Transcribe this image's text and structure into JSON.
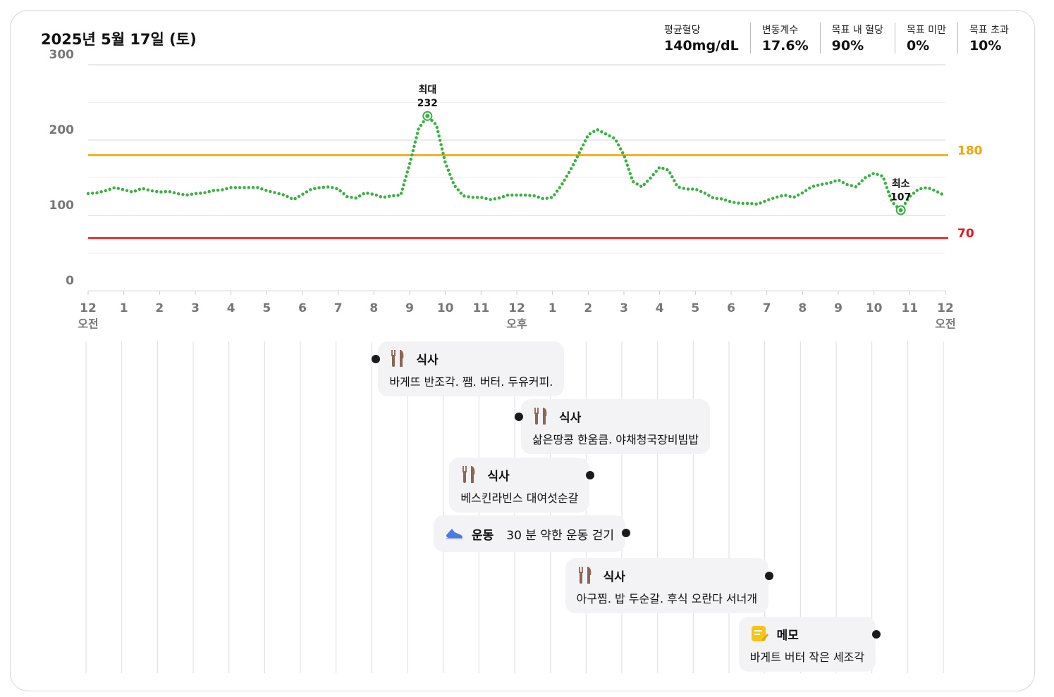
{
  "chart_data": {
    "type": "line",
    "title": "2025년 5월 17일 (토)",
    "stats": [
      {
        "label": "평균혈당",
        "value": "140mg/dL"
      },
      {
        "label": "변동계수",
        "value": "17.6%"
      },
      {
        "label": "목표 내 혈당",
        "value": "90%"
      },
      {
        "label": "목표 미만",
        "value": "0%"
      },
      {
        "label": "목표 초과",
        "value": "10%"
      }
    ],
    "xlim": [
      0,
      24
    ],
    "xticks": [
      {
        "value": 0,
        "label": "12",
        "sublabel": "오전"
      },
      {
        "value": 1,
        "label": "1"
      },
      {
        "value": 2,
        "label": "2"
      },
      {
        "value": 3,
        "label": "3"
      },
      {
        "value": 4,
        "label": "4"
      },
      {
        "value": 5,
        "label": "5"
      },
      {
        "value": 6,
        "label": "6"
      },
      {
        "value": 7,
        "label": "7"
      },
      {
        "value": 8,
        "label": "8"
      },
      {
        "value": 9,
        "label": "9"
      },
      {
        "value": 10,
        "label": "10"
      },
      {
        "value": 11,
        "label": "11"
      },
      {
        "value": 12,
        "label": "12",
        "sublabel": "오후"
      },
      {
        "value": 13,
        "label": "1"
      },
      {
        "value": 14,
        "label": "2"
      },
      {
        "value": 15,
        "label": "3"
      },
      {
        "value": 16,
        "label": "4"
      },
      {
        "value": 17,
        "label": "5"
      },
      {
        "value": 18,
        "label": "6"
      },
      {
        "value": 19,
        "label": "7"
      },
      {
        "value": 20,
        "label": "8"
      },
      {
        "value": 21,
        "label": "9"
      },
      {
        "value": 22,
        "label": "10"
      },
      {
        "value": 23,
        "label": "11"
      },
      {
        "value": 24,
        "label": "12",
        "sublabel": "오전"
      }
    ],
    "ylim": [
      0,
      300
    ],
    "yticks": [
      0,
      100,
      200,
      300
    ],
    "minor_yticks": [
      50,
      150,
      250
    ],
    "grid": true,
    "thresholds": [
      {
        "value": 180,
        "color": "#f0a500"
      },
      {
        "value": 70,
        "color": "#e8141a"
      }
    ],
    "series": [
      {
        "color": "#3bb143",
        "x": [
          0,
          0.25,
          0.5,
          0.75,
          1,
          1.25,
          1.5,
          1.75,
          2,
          2.25,
          2.5,
          2.75,
          3,
          3.25,
          3.5,
          3.75,
          4,
          4.25,
          4.5,
          4.75,
          5,
          5.25,
          5.5,
          5.75,
          6,
          6.25,
          6.5,
          6.75,
          7,
          7.25,
          7.5,
          7.75,
          8,
          8.25,
          8.5,
          8.75,
          9,
          9.25,
          9.5,
          9.75,
          10,
          10.25,
          10.5,
          10.75,
          11,
          11.25,
          11.5,
          11.75,
          12,
          12.25,
          12.5,
          12.75,
          13,
          13.25,
          13.5,
          13.75,
          14,
          14.25,
          14.5,
          14.75,
          15,
          15.25,
          15.5,
          15.75,
          16,
          16.25,
          16.5,
          16.75,
          17,
          17.25,
          17.5,
          17.75,
          18,
          18.25,
          18.5,
          18.75,
          19,
          19.25,
          19.5,
          19.75,
          20,
          20.25,
          20.5,
          20.75,
          21,
          21.25,
          21.5,
          21.75,
          22,
          22.25,
          22.5,
          22.75,
          23,
          23.25,
          23.5,
          23.75,
          24
        ],
        "values": [
          129,
          130,
          133,
          137,
          134,
          131,
          136,
          133,
          131,
          132,
          129,
          127,
          129,
          130,
          133,
          134,
          137,
          137,
          137,
          137,
          133,
          130,
          127,
          121,
          128,
          135,
          137,
          138,
          135,
          125,
          123,
          130,
          128,
          124,
          126,
          127,
          168,
          215,
          232,
          220,
          170,
          140,
          126,
          124,
          124,
          121,
          123,
          127,
          127,
          127,
          126,
          122,
          124,
          140,
          160,
          183,
          207,
          214,
          208,
          202,
          180,
          145,
          138,
          150,
          164,
          160,
          138,
          135,
          135,
          130,
          123,
          122,
          118,
          116,
          116,
          115,
          120,
          124,
          127,
          124,
          130,
          138,
          141,
          143,
          147,
          141,
          138,
          150,
          156,
          152,
          118,
          107,
          125,
          135,
          137,
          132,
          126
        ]
      }
    ],
    "annotations": [
      {
        "label": "최대",
        "x": 9.5,
        "value": 232
      },
      {
        "label": "최소",
        "x": 22.75,
        "value": 107
      }
    ],
    "events": [
      {
        "kind": "meal",
        "label": "식사",
        "time": 8,
        "text": "바게뜨 반조각. 쨈. 버터. 두유커피."
      },
      {
        "kind": "meal",
        "label": "식사",
        "time": 12,
        "text": "삶은땅콩 한움큼. 야채청국장비빔밥"
      },
      {
        "kind": "meal",
        "label": "식사",
        "time": 14,
        "text": "베스킨라빈스 대여섯순갈"
      },
      {
        "kind": "exercise",
        "label": "운동",
        "time": 15,
        "text": "30 분 약한 운동 걷기"
      },
      {
        "kind": "meal",
        "label": "식사",
        "time": 19,
        "text": "아구찜. 밥 두순갈. 후식 오란다 서너개"
      },
      {
        "kind": "memo",
        "label": "메모",
        "time": 22,
        "text": "바게트 버터 작은 세조각"
      }
    ]
  }
}
